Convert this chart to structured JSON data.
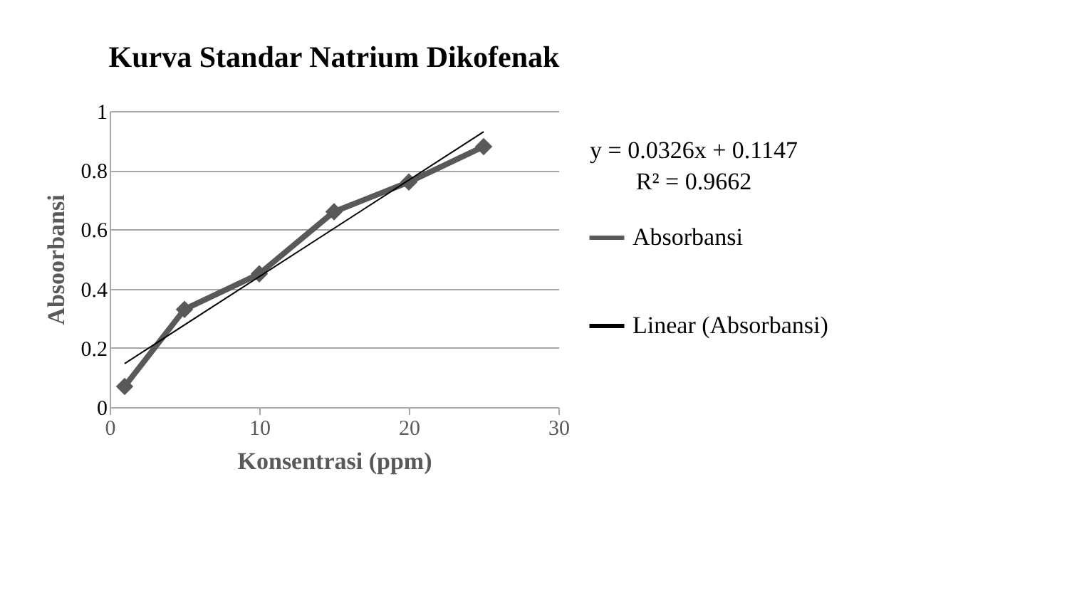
{
  "chart_data": {
    "type": "line",
    "title": "Kurva Standar Natrium Dikofenak",
    "xlabel": "Konsentrasi (ppm)",
    "ylabel": "Absoorbansi",
    "x": [
      1,
      5,
      10,
      15,
      20,
      25
    ],
    "series": [
      {
        "name": "Absorbansi",
        "color": "#595959",
        "values": [
          0.07,
          0.33,
          0.45,
          0.66,
          0.76,
          0.88
        ],
        "marker": "diamond",
        "line_style": "solid"
      },
      {
        "name": "Linear (Absorbansi)",
        "type": "line",
        "color": "#000000",
        "x": [
          1,
          25
        ],
        "values": [
          0.147,
          0.93
        ],
        "marker": "none",
        "line_style": "solid"
      }
    ],
    "xlim": [
      0,
      30
    ],
    "xticks": [
      0,
      10,
      20,
      30
    ],
    "ylim": [
      0,
      1
    ],
    "yticks": [
      0,
      0.2,
      0.4,
      0.6,
      0.8,
      1
    ],
    "grid": "y",
    "legend": "right",
    "annotations": [
      "y = 0.0326x + 0.1147",
      "R² = 0.9662"
    ]
  }
}
